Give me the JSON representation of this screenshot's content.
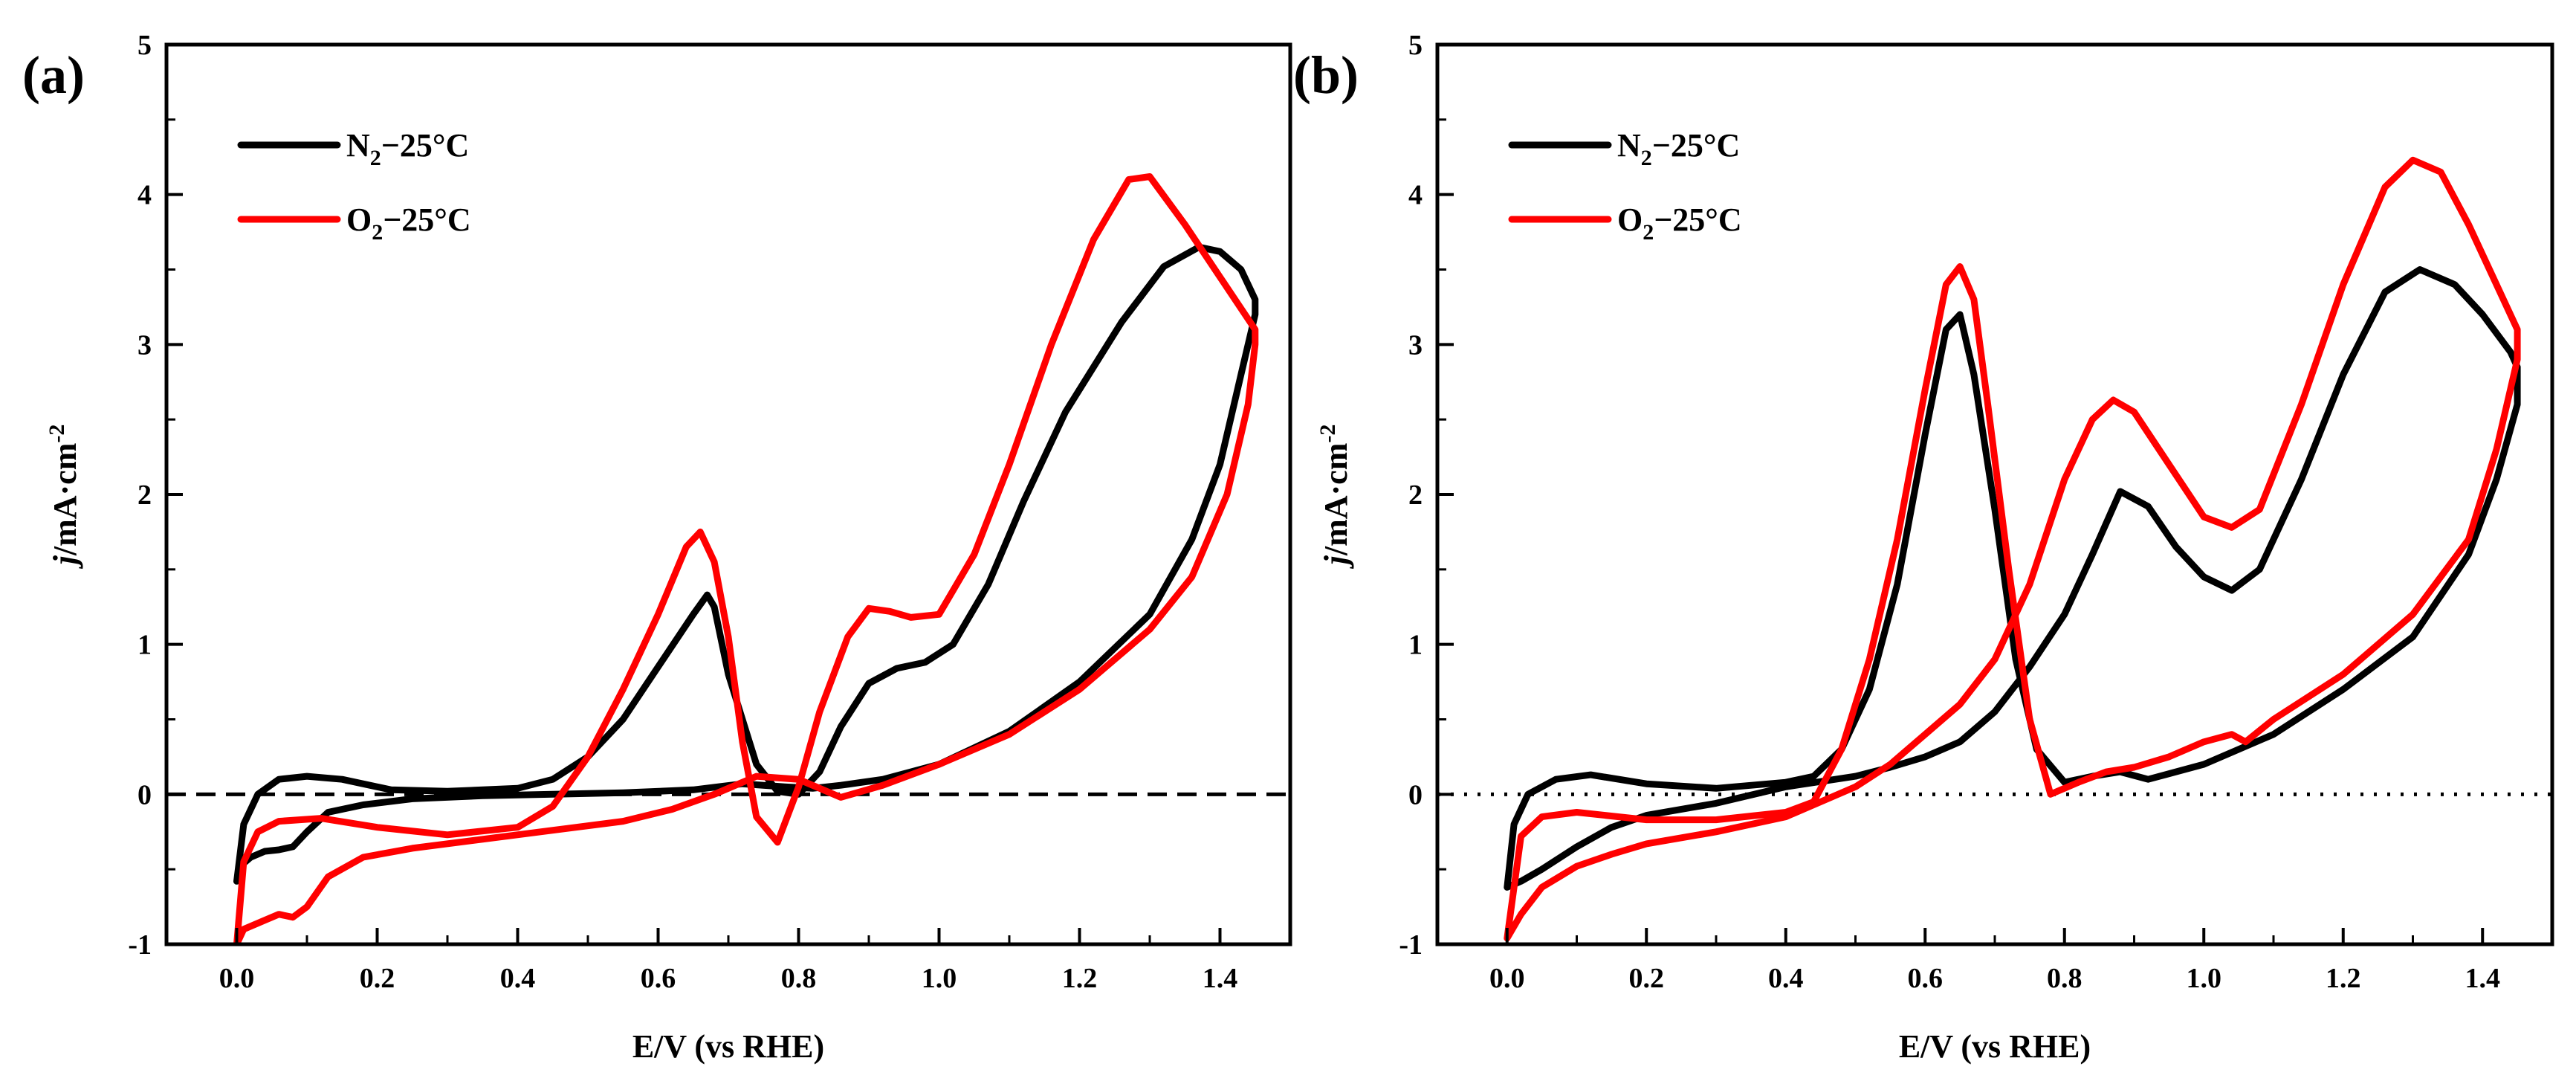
{
  "chart_data": [
    {
      "type": "line",
      "panel_label": "(a)",
      "xlabel": "E/V (vs RHE)",
      "ylabel_main": "j",
      "ylabel_rest": "/mA·cm",
      "ylabel_sup": "-2",
      "xlim": [
        -0.1,
        1.5
      ],
      "ylim": [
        -1,
        5
      ],
      "xticks": [
        "0.0",
        "0.2",
        "0.4",
        "0.6",
        "0.8",
        "1.0",
        "1.2",
        "1.4"
      ],
      "yticks": [
        "-1",
        "0",
        "1",
        "2",
        "3",
        "4",
        "5"
      ],
      "grid": false,
      "legend_position": "top-left",
      "zero_line": "dashed",
      "series": [
        {
          "name_main": "N",
          "name_sub": "2",
          "name_rest": "−25°C",
          "color": "#000000",
          "points": [
            [
              0.0,
              -0.58
            ],
            [
              0.005,
              -0.48
            ],
            [
              0.02,
              -0.42
            ],
            [
              0.04,
              -0.38
            ],
            [
              0.06,
              -0.37
            ],
            [
              0.08,
              -0.35
            ],
            [
              0.1,
              -0.25
            ],
            [
              0.13,
              -0.12
            ],
            [
              0.18,
              -0.07
            ],
            [
              0.25,
              -0.03
            ],
            [
              0.35,
              -0.01
            ],
            [
              0.45,
              0.0
            ],
            [
              0.55,
              0.01
            ],
            [
              0.65,
              0.03
            ],
            [
              0.72,
              0.07
            ],
            [
              0.78,
              0.05
            ],
            [
              0.82,
              0.04
            ],
            [
              0.86,
              0.06
            ],
            [
              0.92,
              0.1
            ],
            [
              1.0,
              0.2
            ],
            [
              1.1,
              0.42
            ],
            [
              1.2,
              0.75
            ],
            [
              1.3,
              1.2
            ],
            [
              1.36,
              1.7
            ],
            [
              1.4,
              2.2
            ],
            [
              1.43,
              2.8
            ],
            [
              1.45,
              3.2
            ],
            [
              1.45,
              3.3
            ],
            [
              1.43,
              3.5
            ],
            [
              1.4,
              3.62
            ],
            [
              1.37,
              3.65
            ],
            [
              1.32,
              3.52
            ],
            [
              1.26,
              3.15
            ],
            [
              1.18,
              2.55
            ],
            [
              1.12,
              1.95
            ],
            [
              1.07,
              1.4
            ],
            [
              1.02,
              1.0
            ],
            [
              0.98,
              0.88
            ],
            [
              0.94,
              0.84
            ],
            [
              0.9,
              0.74
            ],
            [
              0.86,
              0.45
            ],
            [
              0.83,
              0.15
            ],
            [
              0.8,
              0.0
            ],
            [
              0.77,
              0.02
            ],
            [
              0.74,
              0.2
            ],
            [
              0.7,
              0.8
            ],
            [
              0.68,
              1.25
            ],
            [
              0.67,
              1.33
            ],
            [
              0.65,
              1.2
            ],
            [
              0.6,
              0.85
            ],
            [
              0.55,
              0.5
            ],
            [
              0.5,
              0.25
            ],
            [
              0.45,
              0.1
            ],
            [
              0.4,
              0.04
            ],
            [
              0.3,
              0.02
            ],
            [
              0.22,
              0.03
            ],
            [
              0.15,
              0.1
            ],
            [
              0.1,
              0.12
            ],
            [
              0.06,
              0.1
            ],
            [
              0.03,
              0.0
            ],
            [
              0.01,
              -0.2
            ],
            [
              0.0,
              -0.58
            ]
          ]
        },
        {
          "name_main": "O",
          "name_sub": "2",
          "name_rest": "−25°C",
          "color": "#ff0000",
          "points": [
            [
              0.0,
              -1.0
            ],
            [
              0.01,
              -0.9
            ],
            [
              0.04,
              -0.84
            ],
            [
              0.06,
              -0.8
            ],
            [
              0.08,
              -0.82
            ],
            [
              0.1,
              -0.75
            ],
            [
              0.13,
              -0.55
            ],
            [
              0.18,
              -0.42
            ],
            [
              0.25,
              -0.36
            ],
            [
              0.35,
              -0.3
            ],
            [
              0.45,
              -0.24
            ],
            [
              0.55,
              -0.18
            ],
            [
              0.62,
              -0.1
            ],
            [
              0.68,
              0.0
            ],
            [
              0.74,
              0.12
            ],
            [
              0.8,
              0.1
            ],
            [
              0.86,
              -0.02
            ],
            [
              0.92,
              0.06
            ],
            [
              1.0,
              0.2
            ],
            [
              1.1,
              0.4
            ],
            [
              1.2,
              0.7
            ],
            [
              1.3,
              1.1
            ],
            [
              1.36,
              1.45
            ],
            [
              1.41,
              2.0
            ],
            [
              1.44,
              2.6
            ],
            [
              1.45,
              3.0
            ],
            [
              1.45,
              3.1
            ],
            [
              1.4,
              3.45
            ],
            [
              1.35,
              3.8
            ],
            [
              1.3,
              4.12
            ],
            [
              1.27,
              4.1
            ],
            [
              1.22,
              3.7
            ],
            [
              1.16,
              3.0
            ],
            [
              1.1,
              2.2
            ],
            [
              1.05,
              1.6
            ],
            [
              1.0,
              1.2
            ],
            [
              0.96,
              1.18
            ],
            [
              0.93,
              1.22
            ],
            [
              0.9,
              1.24
            ],
            [
              0.87,
              1.05
            ],
            [
              0.83,
              0.55
            ],
            [
              0.8,
              0.05
            ],
            [
              0.77,
              -0.32
            ],
            [
              0.74,
              -0.15
            ],
            [
              0.72,
              0.35
            ],
            [
              0.7,
              1.05
            ],
            [
              0.68,
              1.55
            ],
            [
              0.66,
              1.75
            ],
            [
              0.64,
              1.65
            ],
            [
              0.6,
              1.2
            ],
            [
              0.55,
              0.7
            ],
            [
              0.5,
              0.25
            ],
            [
              0.45,
              -0.08
            ],
            [
              0.4,
              -0.22
            ],
            [
              0.3,
              -0.27
            ],
            [
              0.2,
              -0.22
            ],
            [
              0.12,
              -0.16
            ],
            [
              0.06,
              -0.18
            ],
            [
              0.03,
              -0.25
            ],
            [
              0.01,
              -0.45
            ],
            [
              0.0,
              -1.0
            ]
          ]
        }
      ]
    },
    {
      "type": "line",
      "panel_label": "(b)",
      "xlabel": "E/V (vs RHE)",
      "ylabel_main": "j",
      "ylabel_rest": "/mA·cm",
      "ylabel_sup": "-2",
      "xlim": [
        -0.1,
        1.5
      ],
      "ylim": [
        -1,
        5
      ],
      "xticks": [
        "0.0",
        "0.2",
        "0.4",
        "0.6",
        "0.8",
        "1.0",
        "1.2",
        "1.4"
      ],
      "yticks": [
        "-1",
        "0",
        "1",
        "2",
        "3",
        "4",
        "5"
      ],
      "grid": false,
      "legend_position": "top-left",
      "zero_line": "dotted",
      "series": [
        {
          "name_main": "N",
          "name_sub": "2",
          "name_rest": "−25°C",
          "color": "#000000",
          "points": [
            [
              0.0,
              -0.62
            ],
            [
              0.02,
              -0.58
            ],
            [
              0.05,
              -0.5
            ],
            [
              0.1,
              -0.35
            ],
            [
              0.15,
              -0.22
            ],
            [
              0.2,
              -0.14
            ],
            [
              0.3,
              -0.06
            ],
            [
              0.4,
              0.05
            ],
            [
              0.5,
              0.12
            ],
            [
              0.55,
              0.18
            ],
            [
              0.6,
              0.25
            ],
            [
              0.65,
              0.35
            ],
            [
              0.7,
              0.55
            ],
            [
              0.75,
              0.85
            ],
            [
              0.8,
              1.2
            ],
            [
              0.84,
              1.6
            ],
            [
              0.88,
              2.02
            ],
            [
              0.92,
              1.92
            ],
            [
              0.96,
              1.65
            ],
            [
              1.0,
              1.45
            ],
            [
              1.04,
              1.36
            ],
            [
              1.08,
              1.5
            ],
            [
              1.14,
              2.1
            ],
            [
              1.2,
              2.8
            ],
            [
              1.26,
              3.35
            ],
            [
              1.31,
              3.5
            ],
            [
              1.36,
              3.4
            ],
            [
              1.4,
              3.2
            ],
            [
              1.44,
              2.95
            ],
            [
              1.45,
              2.85
            ],
            [
              1.45,
              2.6
            ],
            [
              1.42,
              2.1
            ],
            [
              1.38,
              1.6
            ],
            [
              1.3,
              1.05
            ],
            [
              1.2,
              0.7
            ],
            [
              1.1,
              0.4
            ],
            [
              1.0,
              0.2
            ],
            [
              0.92,
              0.1
            ],
            [
              0.88,
              0.15
            ],
            [
              0.84,
              0.12
            ],
            [
              0.8,
              0.08
            ],
            [
              0.76,
              0.3
            ],
            [
              0.73,
              0.9
            ],
            [
              0.7,
              1.9
            ],
            [
              0.67,
              2.8
            ],
            [
              0.65,
              3.2
            ],
            [
              0.63,
              3.1
            ],
            [
              0.6,
              2.4
            ],
            [
              0.56,
              1.4
            ],
            [
              0.52,
              0.7
            ],
            [
              0.48,
              0.3
            ],
            [
              0.44,
              0.12
            ],
            [
              0.4,
              0.08
            ],
            [
              0.3,
              0.04
            ],
            [
              0.2,
              0.07
            ],
            [
              0.12,
              0.13
            ],
            [
              0.07,
              0.1
            ],
            [
              0.03,
              0.0
            ],
            [
              0.01,
              -0.2
            ],
            [
              0.0,
              -0.62
            ]
          ]
        },
        {
          "name_main": "O",
          "name_sub": "2",
          "name_rest": "−25°C",
          "color": "#ff0000",
          "points": [
            [
              0.0,
              -0.96
            ],
            [
              0.02,
              -0.8
            ],
            [
              0.05,
              -0.62
            ],
            [
              0.1,
              -0.48
            ],
            [
              0.15,
              -0.4
            ],
            [
              0.2,
              -0.33
            ],
            [
              0.3,
              -0.25
            ],
            [
              0.4,
              -0.15
            ],
            [
              0.5,
              0.05
            ],
            [
              0.55,
              0.2
            ],
            [
              0.6,
              0.4
            ],
            [
              0.65,
              0.6
            ],
            [
              0.7,
              0.9
            ],
            [
              0.75,
              1.4
            ],
            [
              0.8,
              2.1
            ],
            [
              0.84,
              2.5
            ],
            [
              0.87,
              2.63
            ],
            [
              0.9,
              2.55
            ],
            [
              0.95,
              2.2
            ],
            [
              1.0,
              1.85
            ],
            [
              1.04,
              1.78
            ],
            [
              1.08,
              1.9
            ],
            [
              1.14,
              2.6
            ],
            [
              1.2,
              3.4
            ],
            [
              1.26,
              4.05
            ],
            [
              1.3,
              4.23
            ],
            [
              1.34,
              4.15
            ],
            [
              1.38,
              3.8
            ],
            [
              1.42,
              3.4
            ],
            [
              1.45,
              3.1
            ],
            [
              1.45,
              2.9
            ],
            [
              1.42,
              2.3
            ],
            [
              1.38,
              1.7
            ],
            [
              1.3,
              1.2
            ],
            [
              1.2,
              0.8
            ],
            [
              1.1,
              0.5
            ],
            [
              1.06,
              0.35
            ],
            [
              1.04,
              0.4
            ],
            [
              1.0,
              0.35
            ],
            [
              0.95,
              0.25
            ],
            [
              0.9,
              0.18
            ],
            [
              0.86,
              0.15
            ],
            [
              0.82,
              0.08
            ],
            [
              0.78,
              0.0
            ],
            [
              0.75,
              0.5
            ],
            [
              0.72,
              1.5
            ],
            [
              0.69,
              2.6
            ],
            [
              0.67,
              3.3
            ],
            [
              0.65,
              3.52
            ],
            [
              0.63,
              3.4
            ],
            [
              0.6,
              2.7
            ],
            [
              0.56,
              1.7
            ],
            [
              0.52,
              0.9
            ],
            [
              0.48,
              0.3
            ],
            [
              0.44,
              -0.05
            ],
            [
              0.4,
              -0.12
            ],
            [
              0.3,
              -0.17
            ],
            [
              0.2,
              -0.17
            ],
            [
              0.1,
              -0.12
            ],
            [
              0.05,
              -0.15
            ],
            [
              0.02,
              -0.28
            ],
            [
              0.0,
              -0.96
            ]
          ]
        }
      ]
    }
  ]
}
